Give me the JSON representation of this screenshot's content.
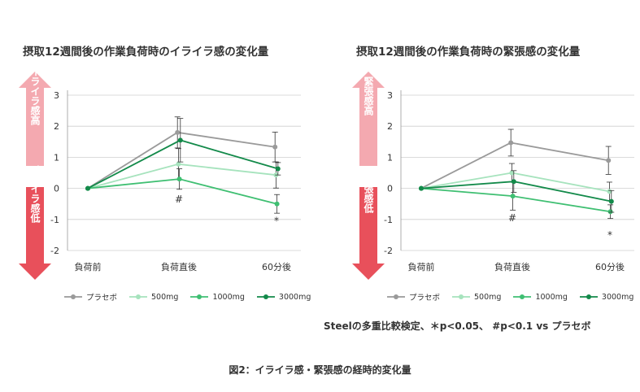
{
  "colors": {
    "placebo": "#9a9a9a",
    "mg500": "#a6e3bd",
    "mg1000": "#3fbf72",
    "mg3000": "#138a4a",
    "arrow_up": "#f4a9b0",
    "arrow_down": "#e8505b"
  },
  "chart_data": [
    {
      "type": "line",
      "title": "摂取12週間後の作業負荷時のイライラ感の変化量",
      "categories": [
        "負荷前",
        "負荷直後",
        "60分後"
      ],
      "ylim": [
        -2,
        3
      ],
      "yticks": [
        "3",
        "2",
        "1",
        "0",
        "-1",
        "-2"
      ],
      "up_label": "イライラ感高",
      "down_label": "イライラ感低",
      "series": [
        {
          "name": "プラセボ",
          "key": "placebo",
          "values": [
            0,
            1.8,
            1.33
          ],
          "err": [
            0,
            0.5,
            0.48
          ]
        },
        {
          "name": "500mg",
          "key": "mg500",
          "values": [
            0,
            0.78,
            0.43
          ],
          "err": [
            0,
            0.5,
            0.42
          ]
        },
        {
          "name": "1000mg",
          "key": "mg1000",
          "values": [
            0,
            0.3,
            -0.5
          ],
          "err": [
            0,
            0.33,
            0.3
          ]
        },
        {
          "name": "3000mg",
          "key": "mg3000",
          "values": [
            0,
            1.55,
            0.63
          ],
          "err": [
            0,
            0.7,
            0.2
          ]
        }
      ],
      "annotations": [
        {
          "text": "#",
          "cat": 1,
          "y": -0.35
        },
        {
          "text": "*",
          "cat": 2,
          "y": -1.05
        }
      ]
    },
    {
      "type": "line",
      "title": "摂取12週間後の作業負荷時の緊張感の変化量",
      "categories": [
        "負荷前",
        "負荷直後",
        "60分後"
      ],
      "ylim": [
        -2,
        3
      ],
      "yticks": [
        "3",
        "2",
        "1",
        "0",
        "-1",
        "-2"
      ],
      "up_label": "緊張感高",
      "down_label": "緊張感低",
      "series": [
        {
          "name": "プラセボ",
          "key": "placebo",
          "values": [
            0,
            1.47,
            0.9
          ],
          "err": [
            0,
            0.43,
            0.45
          ]
        },
        {
          "name": "500mg",
          "key": "mg500",
          "values": [
            0,
            0.5,
            -0.1
          ],
          "err": [
            0,
            0.3,
            0.3
          ]
        },
        {
          "name": "1000mg",
          "key": "mg1000",
          "values": [
            0,
            -0.25,
            -0.75
          ],
          "err": [
            0,
            0.45,
            0.22
          ]
        },
        {
          "name": "3000mg",
          "key": "mg3000",
          "values": [
            0,
            0.22,
            -0.42
          ],
          "err": [
            0,
            0.35,
            0.35
          ]
        }
      ],
      "annotations": [
        {
          "text": "#",
          "cat": 1,
          "y": -0.95
        },
        {
          "text": "*",
          "cat": 2,
          "y": -1.5
        }
      ]
    }
  ],
  "legend": [
    {
      "key": "placebo",
      "label": "プラセボ"
    },
    {
      "key": "mg500",
      "label": "500mg"
    },
    {
      "key": "mg1000",
      "label": "1000mg"
    },
    {
      "key": "mg3000",
      "label": "3000mg"
    }
  ],
  "footnote": "Steelの多重比較検定、＊p<0.05、 #p<0.1 vs プラセボ",
  "caption": "図2：イライラ感・緊張感の経時的変化量"
}
